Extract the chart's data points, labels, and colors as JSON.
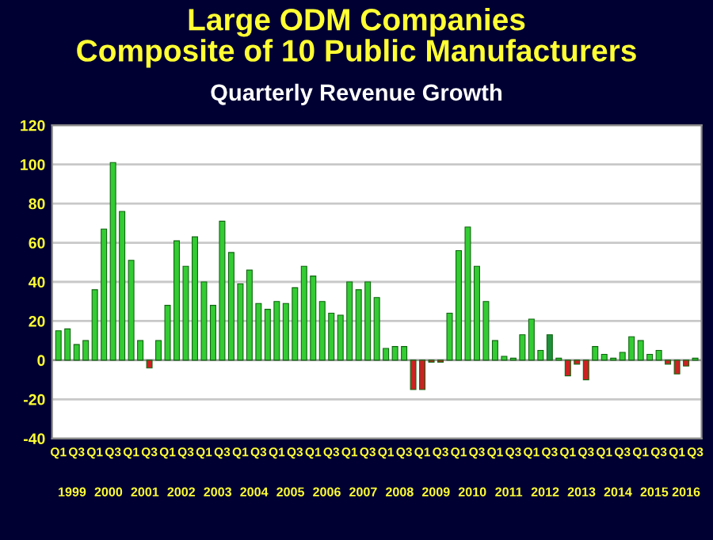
{
  "chart_data": {
    "type": "bar",
    "title": "Large ODM Companies\nComposite of 10 Public Manufacturers",
    "subtitle": "Quarterly Revenue Growth",
    "categories": [
      "Q1",
      null,
      "Q3",
      null,
      "Q1",
      null,
      "Q3",
      null,
      "Q1",
      null,
      "Q3",
      null,
      "Q1",
      null,
      "Q3",
      null,
      "Q1",
      null,
      "Q3",
      null,
      "Q1",
      null,
      "Q3",
      null,
      "Q1",
      null,
      "Q3",
      null,
      "Q1",
      null,
      "Q3",
      null,
      "Q1",
      null,
      "Q3",
      null,
      "Q1",
      null,
      "Q3",
      null,
      "Q1",
      null,
      "Q3",
      null,
      "Q1",
      null,
      "Q3",
      null,
      "Q1",
      null,
      "Q3",
      null,
      "Q1",
      null,
      "Q3",
      null,
      "Q1",
      null,
      "Q3",
      null,
      "Q1",
      null,
      "Q3",
      null,
      "Q1",
      null,
      "Q3",
      null,
      "Q1",
      null,
      "Q3"
    ],
    "values": [
      15,
      16,
      8,
      10,
      36,
      67,
      101,
      76,
      51,
      10,
      -4,
      10,
      28,
      61,
      48,
      63,
      40,
      28,
      71,
      55,
      39,
      46,
      29,
      26,
      30,
      29,
      37,
      48,
      43,
      30,
      24,
      23,
      40,
      36,
      40,
      32,
      6,
      7,
      7,
      -15,
      -15,
      -1,
      -1,
      24,
      56,
      68,
      48,
      30,
      10,
      2,
      1,
      13,
      21,
      5,
      13,
      1,
      -8,
      -2,
      -10,
      7,
      3,
      1,
      4,
      12,
      10,
      3,
      5,
      -2,
      -7,
      -3,
      1
    ],
    "colors": [
      "#33cc33",
      "#33cc33",
      "#33cc33",
      "#33cc33",
      "#33cc33",
      "#33cc33",
      "#33cc33",
      "#33cc33",
      "#33cc33",
      "#33cc33",
      "#cc2222",
      "#33cc33",
      "#33cc33",
      "#33cc33",
      "#33cc33",
      "#33cc33",
      "#33cc33",
      "#33cc33",
      "#33cc33",
      "#33cc33",
      "#33cc33",
      "#33cc33",
      "#33cc33",
      "#33cc33",
      "#33cc33",
      "#33cc33",
      "#33cc33",
      "#33cc33",
      "#33cc33",
      "#33cc33",
      "#33cc33",
      "#33cc33",
      "#33cc33",
      "#33cc33",
      "#33cc33",
      "#33cc33",
      "#33cc33",
      "#33cc33",
      "#33cc33",
      "#cc2222",
      "#cc2222",
      "#cc2222",
      "#cc2222",
      "#33cc33",
      "#33cc33",
      "#33cc33",
      "#33cc33",
      "#33cc33",
      "#33cc33",
      "#33cc33",
      "#33cc33",
      "#33cc33",
      "#33cc33",
      "#33cc33",
      "#1f8f3a",
      "#33cc33",
      "#cc2222",
      "#cc2222",
      "#cc2222",
      "#33cc33",
      "#33cc33",
      "#33cc33",
      "#33cc33",
      "#33cc33",
      "#33cc33",
      "#33cc33",
      "#33cc33",
      "#cc2222",
      "#cc2222",
      "#cc2222",
      "#33cc33"
    ],
    "annotations": [
      "1999",
      "2000",
      "2001",
      "2002",
      "2003",
      "2004",
      "2005",
      "2006",
      "2007",
      "2008",
      "2009",
      "2010",
      "2011",
      "2012",
      "2013",
      "2014",
      "2015",
      "2016"
    ],
    "ylim": [
      -40,
      120
    ],
    "yticks": [
      -40,
      -20,
      0,
      20,
      40,
      60,
      80,
      100,
      120
    ],
    "grid": "y",
    "legend": false
  }
}
